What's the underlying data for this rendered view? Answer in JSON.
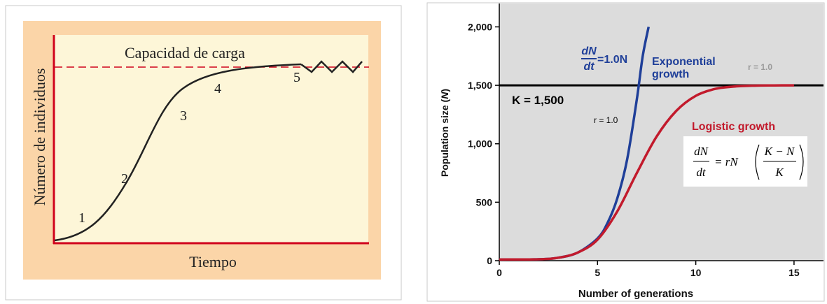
{
  "chart_data": [
    {
      "type": "line",
      "xlabel": "Tiempo",
      "ylabel": "Número de individuos",
      "carrying_capacity_label": "Capacidad de carga",
      "stage_labels": [
        "1",
        "2",
        "3",
        "4",
        "5"
      ],
      "colors": {
        "background": "#fdf6d8",
        "frame": "#fbd5a8",
        "axes": "#d0021b",
        "capacity_line": "#d0021b",
        "curve": "#222222"
      },
      "grid": false
    },
    {
      "type": "line",
      "xlabel": "Number of generations",
      "ylabel": "Population size (N)",
      "xlim": [
        0,
        16.5
      ],
      "ylim": [
        0,
        2200
      ],
      "xticks": [
        0,
        5,
        10,
        15
      ],
      "xtick_labels": [
        "0",
        "5",
        "10",
        "15"
      ],
      "yticks": [
        0,
        500,
        1000,
        1500,
        2000
      ],
      "ytick_labels": [
        "0",
        "500",
        "1,000",
        "1,500",
        "2,000"
      ],
      "grid": false,
      "carrying_capacity": {
        "value": 1500,
        "label": "K = 1,500"
      },
      "series": [
        {
          "name": "Exponential growth",
          "color": "#1f3f99",
          "x": [
            0,
            2,
            3,
            4,
            5,
            5.5,
            6,
            6.5,
            7,
            7.3,
            7.6
          ],
          "y": [
            10,
            12,
            25,
            70,
            190,
            320,
            530,
            860,
            1380,
            1750,
            2000
          ]
        },
        {
          "name": "Logistic growth",
          "color": "#c21a2c",
          "x": [
            0,
            2,
            3,
            4,
            5,
            6,
            7,
            8,
            9,
            10,
            11,
            12,
            13,
            14,
            15
          ],
          "y": [
            10,
            12,
            25,
            70,
            180,
            420,
            750,
            1060,
            1280,
            1410,
            1470,
            1490,
            1497,
            1499,
            1500
          ]
        }
      ],
      "annotations": {
        "exp_eq_num": "dN",
        "exp_eq_den": "dt",
        "exp_eq_rhs": "=1.0N",
        "exp_label_line1": "Exponential",
        "exp_label_line2": "growth",
        "r_label_black": "r = 1.0",
        "r_label_gray": "r = 1.0",
        "logistic_label": "Logistic growth",
        "log_eq": {
          "lhs_num": "dN",
          "lhs_den": "dt",
          "eq": "= rN",
          "frac_num": "K − N",
          "frac_den": "K"
        }
      },
      "colors": {
        "plot_bg": "#dcdcdc",
        "k_line": "#000000",
        "annot_gray": "#9a9a9a"
      }
    }
  ]
}
